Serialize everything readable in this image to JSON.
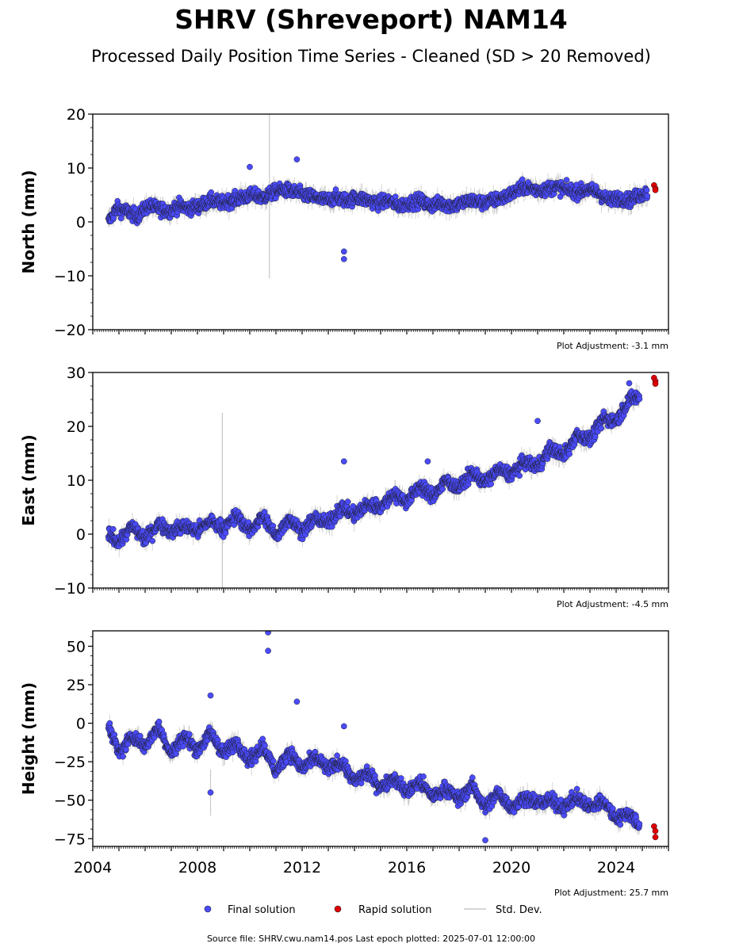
{
  "title": "SHRV (Shreveport) NAM14",
  "subtitle": "Processed Daily Position Time Series - Cleaned (SD > 20 Removed)",
  "footer": "Source file: SHRV.cwu.nam14.pos  Last epoch plotted: 2025-07-01 12:00:00",
  "legend": {
    "items": [
      {
        "label": "Final solution",
        "color": "#4a4aff"
      },
      {
        "label": "Rapid solution",
        "color": "#e00000"
      },
      {
        "label": "Std. Dev.",
        "color": "#c8c8c8"
      }
    ]
  },
  "colors": {
    "final": "#4a4aff",
    "rapid": "#e00000",
    "stddev": "#c8c8c8",
    "edge": "#202030"
  },
  "chart_data": [
    {
      "type": "scatter",
      "ylabel": "North (mm)",
      "annotation": "Plot Adjustment: -3.1 mm",
      "xlim": [
        2004,
        2026
      ],
      "ylim": [
        -20,
        20
      ],
      "yticks": [
        -20,
        -10,
        0,
        10,
        20
      ],
      "ytick_labels": [
        "−20",
        "−10",
        "0",
        "10",
        "20"
      ],
      "series": [
        {
          "role": "final",
          "x": [
            2004.6,
            2004.9,
            2005.3,
            2005.7,
            2006.1,
            2006.5,
            2006.9,
            2007.3,
            2007.7,
            2008.1,
            2008.5,
            2008.9,
            2009.3,
            2009.7,
            2010.1,
            2010.5,
            2010.9,
            2011.3,
            2011.7,
            2012.1,
            2012.5,
            2012.9,
            2013.3,
            2013.7,
            2014.1,
            2014.5,
            2014.9,
            2015.3,
            2015.7,
            2016.1,
            2016.5,
            2016.9,
            2017.3,
            2017.7,
            2018.1,
            2018.5,
            2018.9,
            2019.3,
            2019.7,
            2020.1,
            2020.5,
            2020.9,
            2021.3,
            2021.7,
            2022.1,
            2022.5,
            2022.9,
            2023.3,
            2023.7,
            2024.1,
            2024.5,
            2024.9,
            2025.2
          ],
          "y": [
            0.0,
            2.5,
            2.0,
            1.0,
            3.0,
            2.5,
            2.0,
            3.0,
            2.5,
            3.0,
            4.0,
            3.5,
            4.0,
            4.5,
            5.0,
            4.5,
            5.5,
            6.0,
            5.5,
            5.0,
            4.5,
            4.0,
            4.5,
            4.0,
            4.5,
            4.0,
            3.5,
            4.0,
            3.0,
            3.5,
            4.0,
            3.0,
            3.5,
            3.0,
            3.5,
            4.0,
            3.5,
            4.0,
            4.5,
            5.5,
            6.5,
            6.0,
            6.0,
            6.5,
            6.0,
            5.5,
            6.0,
            5.5,
            4.0,
            4.5,
            4.0,
            5.0,
            5.5
          ],
          "outliers": [
            [
              2010.0,
              10.2
            ],
            [
              2011.8,
              11.6
            ],
            [
              2013.6,
              -5.5
            ],
            [
              2013.6,
              -6.9
            ]
          ]
        },
        {
          "role": "rapid",
          "x": [
            2025.45,
            2025.5,
            2025.5
          ],
          "y": [
            6.8,
            6.2,
            5.9
          ]
        }
      ]
    },
    {
      "type": "scatter",
      "ylabel": "East (mm)",
      "annotation": "Plot Adjustment: -4.5 mm",
      "xlim": [
        2004,
        2026
      ],
      "ylim": [
        -10,
        30
      ],
      "yticks": [
        -10,
        0,
        10,
        20,
        30
      ],
      "ytick_labels": [
        "−10",
        "0",
        "10",
        "20",
        "30"
      ],
      "series": [
        {
          "role": "final",
          "x": [
            2004.6,
            2005.0,
            2005.5,
            2006.0,
            2006.5,
            2007.0,
            2007.5,
            2008.0,
            2008.5,
            2009.0,
            2009.5,
            2010.0,
            2010.5,
            2011.0,
            2011.5,
            2012.0,
            2012.5,
            2013.0,
            2013.5,
            2014.0,
            2014.5,
            2015.0,
            2015.5,
            2016.0,
            2016.5,
            2017.0,
            2017.5,
            2018.0,
            2018.5,
            2019.0,
            2019.5,
            2020.0,
            2020.5,
            2021.0,
            2021.5,
            2022.0,
            2022.5,
            2023.0,
            2023.5,
            2024.0,
            2024.5,
            2024.9
          ],
          "y": [
            0.0,
            -1.5,
            1.5,
            -1.0,
            2.0,
            0.5,
            1.5,
            0.5,
            2.5,
            1.0,
            3.5,
            0.5,
            3.5,
            -0.5,
            3.0,
            0.5,
            3.0,
            2.0,
            5.0,
            3.5,
            5.5,
            5.0,
            7.5,
            6.0,
            9.0,
            7.0,
            10.0,
            8.5,
            11.5,
            9.5,
            12.0,
            11.0,
            13.5,
            12.5,
            16.0,
            14.5,
            18.5,
            17.5,
            21.5,
            21.0,
            25.0,
            25.5
          ],
          "outliers": [
            [
              2013.6,
              13.5
            ],
            [
              2016.8,
              13.5
            ],
            [
              2021.0,
              21.0
            ],
            [
              2024.5,
              28.0
            ]
          ]
        },
        {
          "role": "rapid",
          "x": [
            2025.45,
            2025.5,
            2025.5
          ],
          "y": [
            29.0,
            28.4,
            27.9
          ]
        }
      ]
    },
    {
      "type": "scatter",
      "ylabel": "Height (mm)",
      "annotation": "Plot Adjustment: 25.7 mm",
      "xlim": [
        2004,
        2026
      ],
      "ylim": [
        -80,
        60
      ],
      "yticks": [
        -75,
        -50,
        -25,
        0,
        25,
        50
      ],
      "ytick_labels": [
        "−75",
        "−50",
        "−25",
        "0",
        "25",
        "50"
      ],
      "xticks": [
        2004,
        2008,
        2012,
        2016,
        2020,
        2024
      ],
      "xtick_labels": [
        "2004",
        "2008",
        "2012",
        "2016",
        "2020",
        "2024"
      ],
      "series": [
        {
          "role": "final",
          "x": [
            2004.6,
            2005.0,
            2005.5,
            2006.0,
            2006.5,
            2007.0,
            2007.5,
            2008.0,
            2008.5,
            2009.0,
            2009.5,
            2010.0,
            2010.5,
            2011.0,
            2011.5,
            2012.0,
            2012.5,
            2013.0,
            2013.5,
            2014.0,
            2014.5,
            2015.0,
            2015.5,
            2016.0,
            2016.5,
            2017.0,
            2017.5,
            2018.0,
            2018.5,
            2019.0,
            2019.5,
            2020.0,
            2020.5,
            2021.0,
            2021.5,
            2022.0,
            2022.5,
            2023.0,
            2023.5,
            2024.0,
            2024.5,
            2024.9
          ],
          "y": [
            0,
            -20,
            -8,
            -15,
            -2,
            -20,
            -8,
            -18,
            -6,
            -20,
            -12,
            -25,
            -14,
            -32,
            -18,
            -30,
            -22,
            -30,
            -25,
            -38,
            -32,
            -42,
            -35,
            -45,
            -38,
            -48,
            -42,
            -50,
            -40,
            -55,
            -45,
            -55,
            -48,
            -52,
            -50,
            -55,
            -48,
            -55,
            -50,
            -62,
            -58,
            -68
          ],
          "outliers": [
            [
              2010.7,
              59
            ],
            [
              2010.7,
              47
            ],
            [
              2008.5,
              18
            ],
            [
              2011.8,
              14
            ],
            [
              2013.6,
              -2
            ],
            [
              2008.5,
              -45
            ],
            [
              2019.0,
              -76
            ]
          ]
        },
        {
          "role": "rapid",
          "x": [
            2025.45,
            2025.5,
            2025.5
          ],
          "y": [
            -67,
            -70,
            -74
          ]
        }
      ]
    }
  ]
}
